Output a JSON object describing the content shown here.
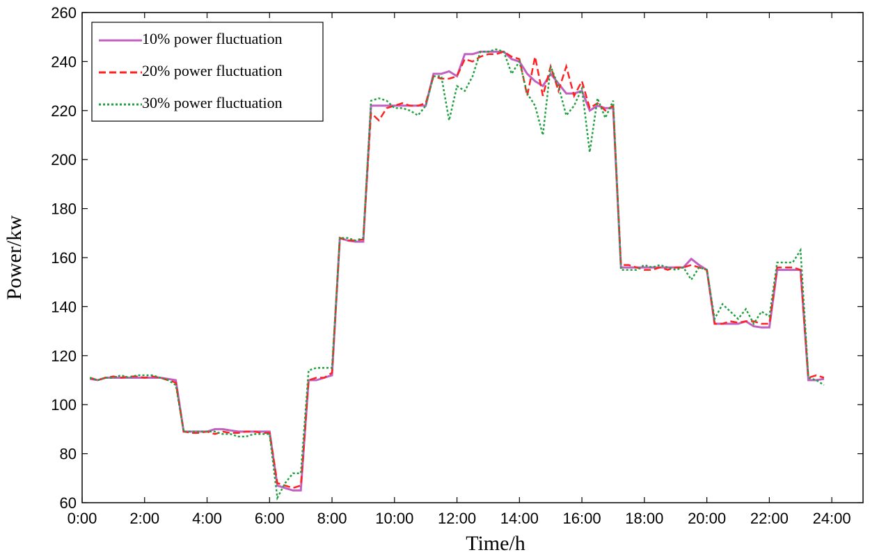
{
  "chart_data": {
    "type": "line",
    "x_label": "Time/h",
    "y_label": "Power/kw",
    "x": [
      0.25,
      0.5,
      0.75,
      1,
      1.25,
      1.5,
      1.75,
      2,
      2.25,
      2.5,
      2.75,
      3,
      3.25,
      3.5,
      3.75,
      4,
      4.25,
      4.5,
      4.75,
      5,
      5.25,
      5.5,
      5.75,
      6,
      6.25,
      6.5,
      6.75,
      7,
      7.25,
      7.5,
      7.75,
      8,
      8.25,
      8.5,
      8.75,
      9,
      9.25,
      9.5,
      9.75,
      10,
      10.25,
      10.5,
      10.75,
      11,
      11.25,
      11.5,
      11.75,
      12,
      12.25,
      12.5,
      12.75,
      13,
      13.25,
      13.5,
      13.75,
      14,
      14.25,
      14.5,
      14.75,
      15,
      15.25,
      15.5,
      15.75,
      16,
      16.25,
      16.5,
      16.75,
      17,
      17.25,
      17.5,
      17.75,
      18,
      18.25,
      18.5,
      18.75,
      19,
      19.25,
      19.5,
      19.75,
      20,
      20.25,
      20.5,
      20.75,
      21,
      21.25,
      21.5,
      21.75,
      22,
      22.25,
      22.5,
      22.75,
      23,
      23.25,
      23.5,
      23.75
    ],
    "series": [
      {
        "name": "10% power fluctuation",
        "color": "#c060c0",
        "dash": "solid",
        "values": [
          110.5,
          110,
          111,
          111,
          111,
          111,
          111,
          111,
          111,
          111,
          110.5,
          110,
          89,
          89,
          89,
          89,
          90,
          90,
          89.5,
          89,
          89,
          89,
          89,
          89,
          67,
          66,
          65,
          65,
          110,
          110,
          111,
          112,
          168,
          167,
          166.5,
          166.5,
          222,
          222,
          222,
          222,
          222,
          222,
          222,
          222,
          235,
          235,
          236,
          234,
          243,
          243,
          244,
          244,
          244,
          244,
          241,
          240,
          235,
          232,
          230,
          235,
          231,
          227,
          227,
          228,
          220,
          222,
          221,
          221,
          156,
          156,
          156,
          156,
          156,
          156,
          156,
          156,
          156,
          159.5,
          157,
          155,
          133,
          133,
          133,
          133,
          134,
          132,
          131.5,
          131.5,
          155,
          155,
          155,
          155,
          110,
          110,
          110.5
        ]
      },
      {
        "name": "20% power fluctuation",
        "color": "#ff2020",
        "dash": "dashed",
        "values": [
          111,
          110,
          111,
          111.5,
          111,
          111.5,
          111.5,
          111,
          111.5,
          111,
          110,
          109,
          89,
          88.5,
          88.5,
          89,
          88,
          89,
          88.5,
          88.5,
          89,
          89,
          88.5,
          88.5,
          68,
          67,
          66,
          67,
          110,
          111,
          111,
          113,
          168,
          167,
          167,
          167.5,
          219,
          216,
          221,
          222,
          223,
          222,
          222,
          223,
          234,
          233,
          233,
          234,
          241,
          240,
          242,
          243,
          243,
          244,
          242,
          241,
          226,
          242,
          226,
          238,
          228,
          238,
          226,
          232,
          221,
          223,
          220,
          222,
          157,
          157,
          156,
          155,
          155,
          156,
          155,
          156,
          156,
          157,
          156,
          155,
          133,
          133,
          134,
          133.5,
          134,
          134,
          133,
          133,
          156,
          156,
          156,
          155,
          111,
          112,
          111
        ]
      },
      {
        "name": "30% power fluctuation",
        "color": "#20a040",
        "dash": "dotted",
        "values": [
          111,
          110,
          111,
          111,
          112,
          111,
          112,
          112,
          112,
          111,
          110,
          108,
          89,
          89,
          89,
          89,
          89,
          88,
          88,
          87,
          87,
          88,
          88,
          88,
          62,
          68,
          72,
          72,
          114,
          115,
          115,
          115,
          168,
          168,
          167,
          168,
          224,
          225,
          224,
          221,
          221,
          220,
          218,
          222,
          234,
          234,
          216,
          230,
          228,
          234,
          244,
          244,
          245,
          244,
          235,
          240,
          227,
          222,
          210,
          238,
          230,
          218,
          222,
          229,
          203,
          225,
          217,
          224,
          155,
          155,
          155,
          157,
          156,
          157,
          156,
          155,
          156,
          151,
          156,
          155,
          135,
          141,
          138,
          135,
          139,
          133,
          138,
          136,
          158,
          158,
          158,
          163,
          111,
          110,
          108
        ]
      }
    ],
    "xlim": [
      0,
      25
    ],
    "xticks": [
      {
        "value": 0,
        "label": "0:00"
      },
      {
        "value": 2,
        "label": "2:00"
      },
      {
        "value": 4,
        "label": "4:00"
      },
      {
        "value": 6,
        "label": "6:00"
      },
      {
        "value": 8,
        "label": "8:00"
      },
      {
        "value": 10,
        "label": "10:00"
      },
      {
        "value": 12,
        "label": "12:00"
      },
      {
        "value": 14,
        "label": "14:00"
      },
      {
        "value": 16,
        "label": "16:00"
      },
      {
        "value": 18,
        "label": "18:00"
      },
      {
        "value": 20,
        "label": "20:00"
      },
      {
        "value": 22,
        "label": "22:00"
      },
      {
        "value": 24,
        "label": "24:00"
      }
    ],
    "ylim": [
      60,
      260
    ],
    "yticks": [
      60,
      80,
      100,
      120,
      140,
      160,
      180,
      200,
      220,
      240,
      260
    ],
    "legend": "upper left",
    "grid": false
  }
}
